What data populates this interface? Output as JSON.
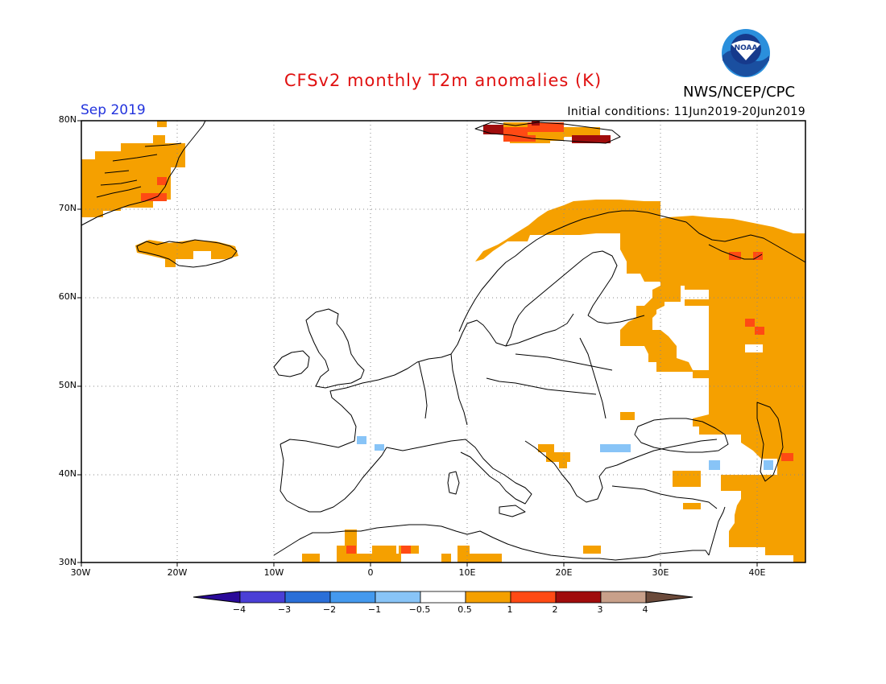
{
  "title": "CFSv2 monthly T2m anomalies (K)",
  "month_label": "Sep 2019",
  "initial_conditions": "Initial conditions: 11Jun2019-20Jun2019",
  "organization": "NWS/NCEP/CPC",
  "logo_text": "NOAA",
  "colors": {
    "title": "#e01010",
    "month": "#2233dd",
    "land_outline": "#000000",
    "grid": "#888888"
  },
  "map": {
    "lat_labels": [
      "80N",
      "70N",
      "60N",
      "50N",
      "40N",
      "30N"
    ],
    "lon_labels": [
      "30W",
      "20W",
      "10W",
      "0",
      "10E",
      "20E",
      "30E",
      "40E"
    ]
  },
  "colorbar": {
    "colors": [
      "#2a0a99",
      "#4a3fd6",
      "#2a6fd8",
      "#4499ee",
      "#88c4f7",
      "#ffffff",
      "#f5a000",
      "#ff4a14",
      "#a00c0c",
      "#c8a08a",
      "#6b4a3a"
    ],
    "labels": [
      "−4",
      "−3",
      "−2",
      "−1",
      "−0.5",
      "0.5",
      "1",
      "2",
      "3",
      "4"
    ]
  }
}
